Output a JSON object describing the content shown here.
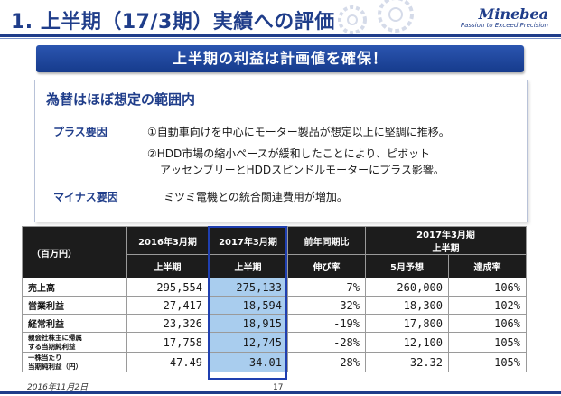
{
  "header": {
    "title": "1. 上半期（17/3期）実績への評価",
    "logo_name": "Minebea",
    "logo_tagline": "Passion to Exceed Precision"
  },
  "banner": {
    "text": "上半期の利益は計画値を確保！"
  },
  "summary": {
    "heading": "為替はほぼ想定の範囲内",
    "plus_label": "プラス要因",
    "plus_items": [
      "①自動車向けを中心にモーター製品が想定以上に堅調に推移。",
      "②HDD市場の縮小ペースが緩和したことにより、ピボット",
      "アッセンブリーとHDDスピンドルモーターにプラス影響。"
    ],
    "minus_label": "マイナス要因",
    "minus_items": [
      "ミツミ電機との統合関連費用が増加。"
    ]
  },
  "table": {
    "unit": "（百万円）",
    "headers": {
      "fy2016": "2016年3月期",
      "fy2017": "2017年3月期",
      "yoy": "前年同期比",
      "fy2017_h1": "2017年3月期",
      "fy2017_h1_sub": "上半期",
      "h1": "上半期",
      "growth": "伸び率",
      "forecast": "5月予想",
      "achievement": "達成率"
    },
    "rows": [
      {
        "label": "売上高",
        "fy2016": "295,554",
        "fy2017": "275,133",
        "yoy": "-7%",
        "forecast": "260,000",
        "achievement": "106%"
      },
      {
        "label": "営業利益",
        "fy2016": "27,417",
        "fy2017": "18,594",
        "yoy": "-32%",
        "forecast": "18,300",
        "achievement": "102%"
      },
      {
        "label": "経常利益",
        "fy2016": "23,326",
        "fy2017": "18,915",
        "yoy": "-19%",
        "forecast": "17,800",
        "achievement": "106%"
      },
      {
        "label_line1": "親会社株主に帰属",
        "label_line2": "する当期純利益",
        "fy2016": "17,758",
        "fy2017": "12,745",
        "yoy": "-28%",
        "forecast": "12,100",
        "achievement": "105%"
      },
      {
        "label_line1": "一株当たり",
        "label_line2": "当期純利益（円）",
        "fy2016": "47.49",
        "fy2017": "34.01",
        "yoy": "-28%",
        "forecast": "32.32",
        "achievement": "105%"
      }
    ],
    "highlight_color": "#a9cdee"
  },
  "footer": {
    "date": "2016年11月2日",
    "page": "17"
  },
  "colors": {
    "brand": "#1f3d8a",
    "banner": "#163b8c",
    "header_bg": "#1c1c1c"
  }
}
